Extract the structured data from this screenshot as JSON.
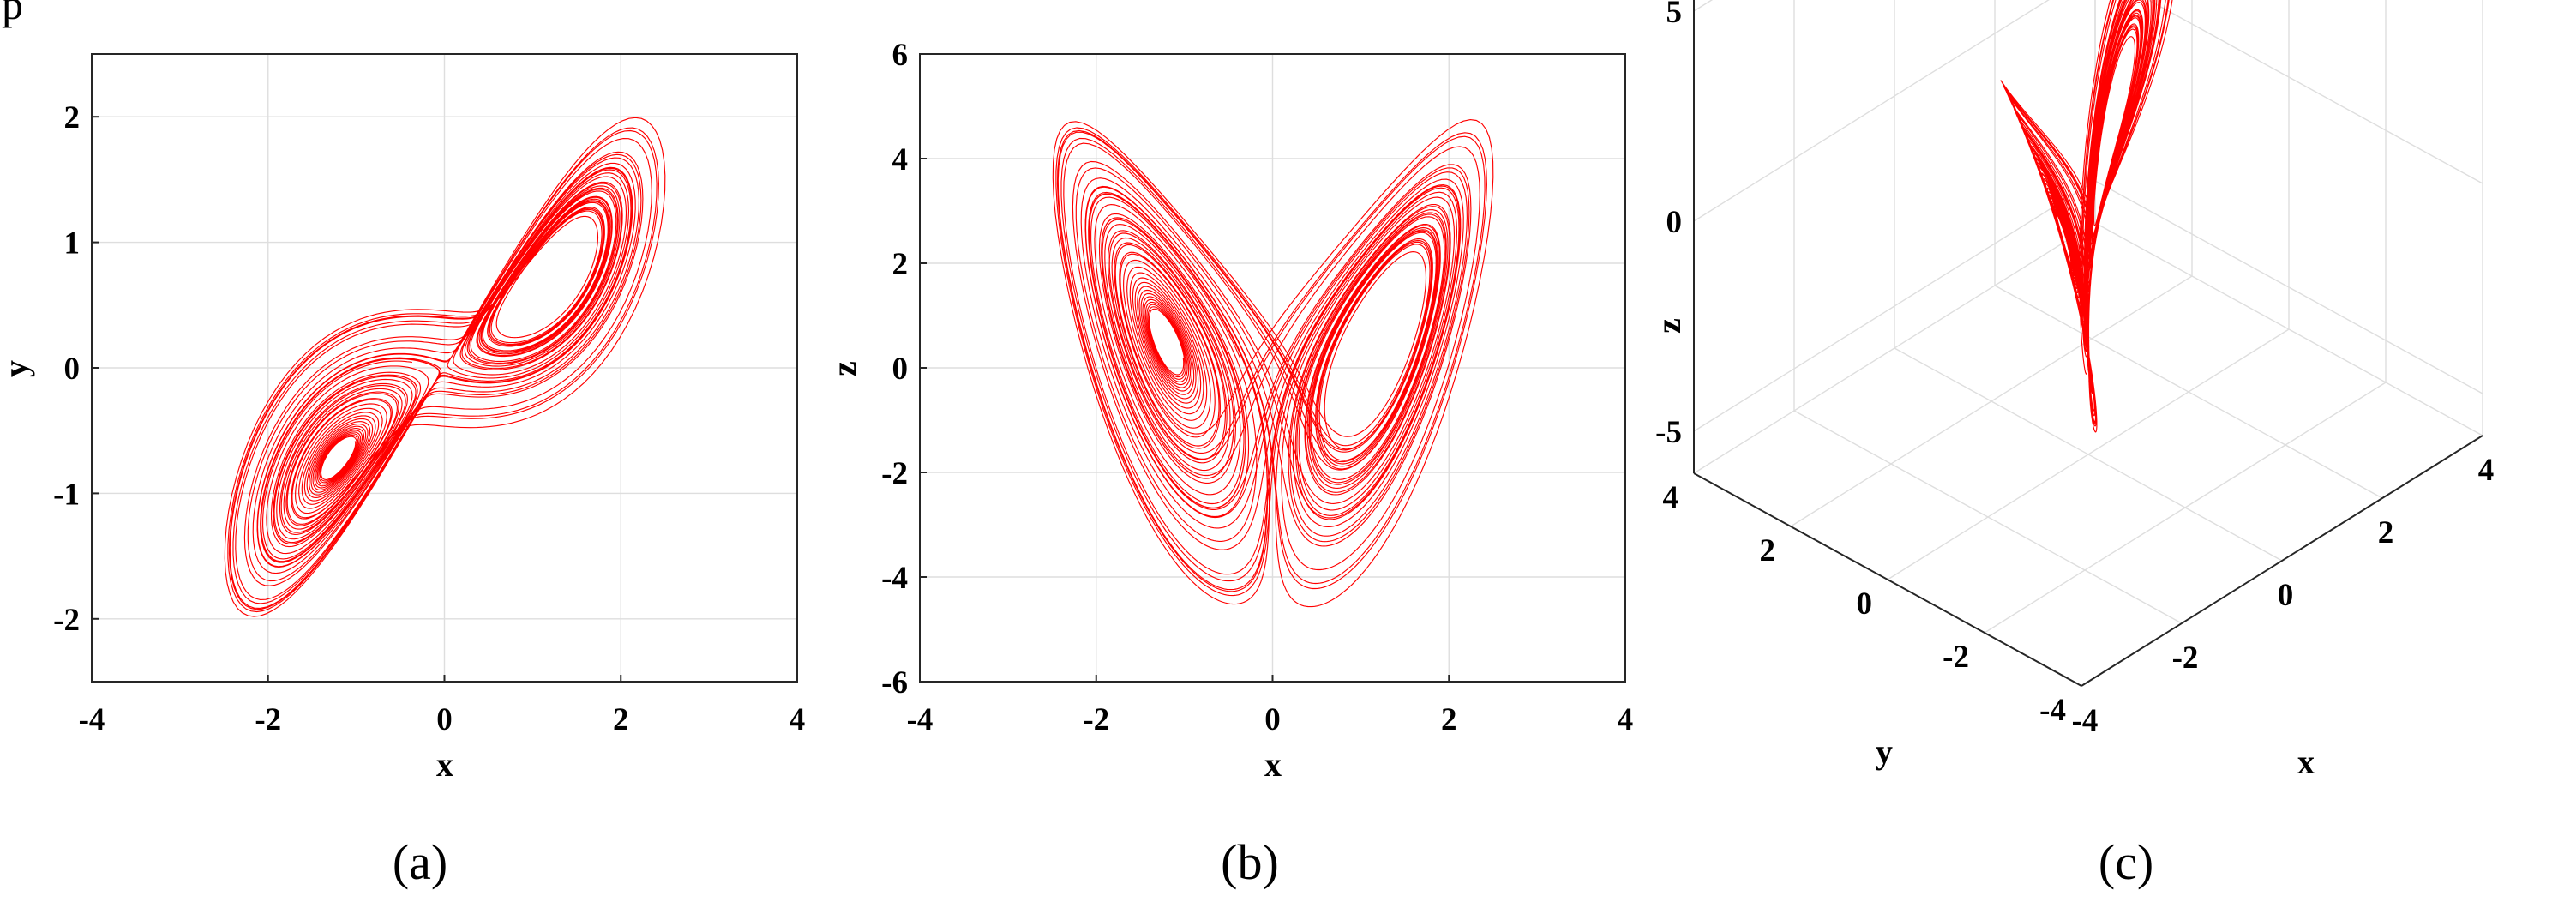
{
  "top_text": "p",
  "chart_data": [
    {
      "type": "line",
      "panel": "a",
      "caption": "(a)",
      "xlabel": "x",
      "ylabel": "y",
      "xlim": [
        -4,
        4
      ],
      "ylim": [
        -2.5,
        2.5
      ],
      "xticks": [
        "-4",
        "-2",
        "0",
        "2",
        "4"
      ],
      "yticks": [
        "-2",
        "-1",
        "0",
        "1",
        "2"
      ],
      "grid": true,
      "color": "#ff0000",
      "series": [
        {
          "x_range": [
            -3.2,
            3.3
          ],
          "y_range": [
            -2.25,
            2.3
          ],
          "description_points": {
            "left_hole_center": [
              -1.2,
              -1.2
            ],
            "right_hole_center": [
              1.1,
              1.2
            ],
            "start_point": [
              1.0,
              1.0
            ]
          }
        }
      ]
    },
    {
      "type": "line",
      "panel": "b",
      "caption": "(b)",
      "xlabel": "x",
      "ylabel": "z",
      "xlim": [
        -4,
        4
      ],
      "ylim": [
        -6,
        6
      ],
      "xticks": [
        "-4",
        "-2",
        "0",
        "2",
        "4"
      ],
      "yticks": [
        "-6",
        "-4",
        "-2",
        "0",
        "2",
        "4",
        "6"
      ],
      "grid": true,
      "color": "#ff0000",
      "series": [
        {
          "x_range": [
            -3.2,
            3.3
          ],
          "y_range": [
            -4.6,
            5.8
          ],
          "description_points": {
            "left_hole_center": [
              -1.0,
              0.2
            ],
            "right_hole_center": [
              1.0,
              0.2
            ]
          }
        }
      ]
    },
    {
      "type": "line",
      "panel": "c",
      "caption": "(c)",
      "projection": "3d",
      "xlabel": "x",
      "ylabel": "y",
      "zlabel": "z",
      "xlim": [
        -4,
        4
      ],
      "ylim": [
        -4,
        4
      ],
      "zlim": [
        -6,
        6
      ],
      "xticks": [
        "-4",
        "-2",
        "0",
        "2",
        "4"
      ],
      "yticks": [
        "-4",
        "-2",
        "0",
        "2",
        "4"
      ],
      "zticks": [
        "-5",
        "0",
        "5"
      ],
      "grid": true,
      "color": "#ff0000"
    }
  ]
}
